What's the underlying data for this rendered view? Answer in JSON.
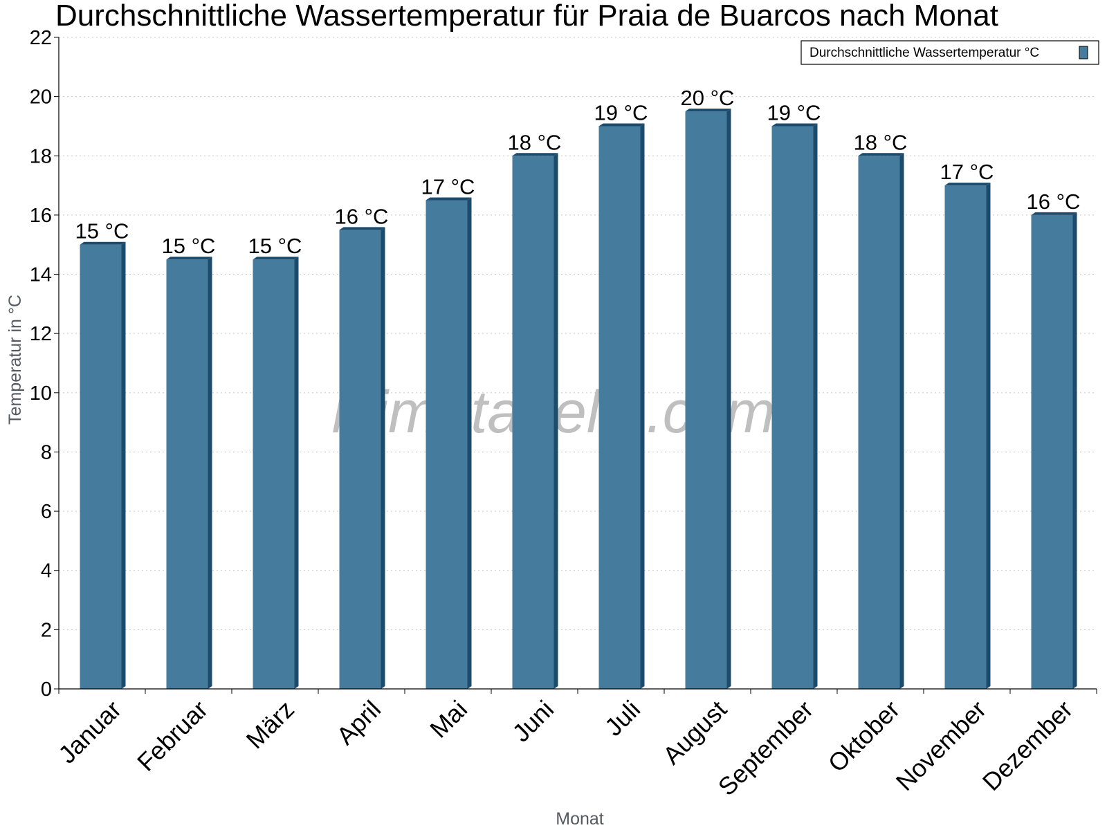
{
  "chart_data": {
    "type": "bar",
    "title": "Durchschnittliche Wassertemperatur für Praia de Buarcos nach Monat",
    "xlabel": "Monat",
    "ylabel": "Temperatur in °C",
    "categories": [
      "Januar",
      "Februar",
      "März",
      "April",
      "Mai",
      "Juni",
      "Juli",
      "August",
      "September",
      "Oktober",
      "November",
      "Dezember"
    ],
    "series": [
      {
        "name": "Durchschnittliche Wassertemperatur °C",
        "values": [
          15.0,
          14.5,
          14.5,
          15.5,
          16.5,
          18.0,
          19.0,
          19.5,
          19.0,
          18.0,
          17.0,
          16.0
        ],
        "labels": [
          "15 °C",
          "15 °C",
          "15 °C",
          "16 °C",
          "17 °C",
          "18 °C",
          "19 °C",
          "20 °C",
          "19 °C",
          "18 °C",
          "17 °C",
          "16 °C"
        ],
        "color": "#457b9d",
        "edge_color": "#1d4b6b"
      }
    ],
    "ylim": [
      0,
      22
    ],
    "yticks": [
      "0",
      "2",
      "4",
      "6",
      "8",
      "10",
      "12",
      "14",
      "16",
      "18",
      "20",
      "22"
    ],
    "grid": true,
    "legend_position": "top-right",
    "watermark": "klimatabelle.com"
  }
}
